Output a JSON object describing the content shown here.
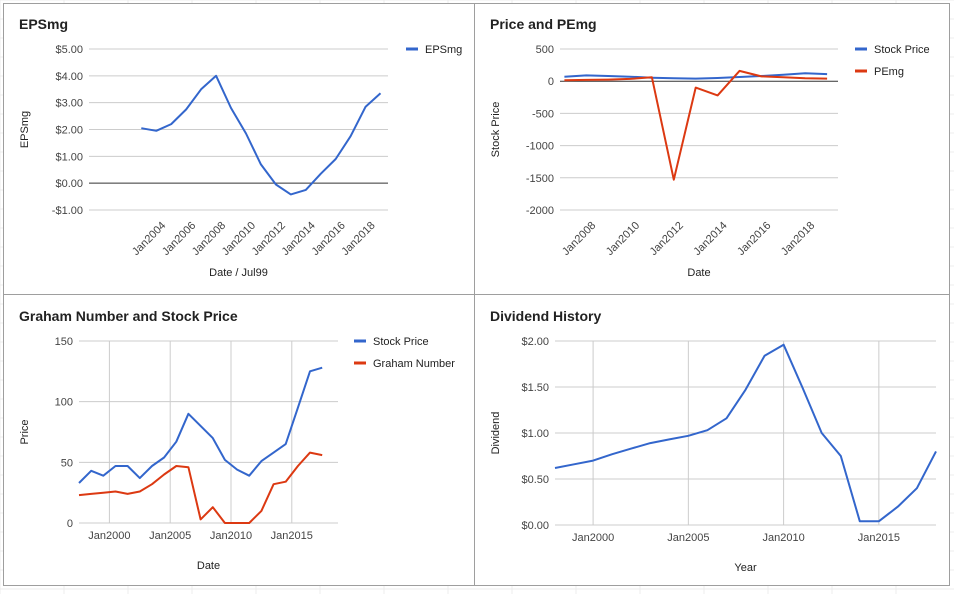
{
  "chart_data": [
    {
      "type": "line",
      "title": "EPSmg",
      "xlabel": "Date / Jul99",
      "ylabel": "EPSmg",
      "xlim": [
        1999.5,
        2019.5
      ],
      "ylim": [
        -1,
        5
      ],
      "yticks": [
        5,
        4,
        3,
        2,
        1,
        0,
        -1
      ],
      "ytick_labels": [
        "$5.00",
        "$4.00",
        "$3.00",
        "$2.00",
        "$1.00",
        "$0.00",
        "-$1.00"
      ],
      "xticks": [
        2004,
        2006,
        2008,
        2010,
        2012,
        2014,
        2016,
        2018
      ],
      "xtick_labels": [
        "Jan2004",
        "Jan2006",
        "Jan2008",
        "Jan2010",
        "Jan2012",
        "Jan2014",
        "Jan2016",
        "Jan2018"
      ],
      "xtick_rotation": -45,
      "zero_line": true,
      "vertical_grid": false,
      "legend_position": "right",
      "series": [
        {
          "name": "EPSmg",
          "color": "#3366cc",
          "x": [
            2003,
            2004,
            2005,
            2006,
            2007,
            2008,
            2009,
            2010,
            2011,
            2012,
            2013,
            2014,
            2015,
            2016,
            2017,
            2018,
            2019
          ],
          "y": [
            2.05,
            1.95,
            2.2,
            2.75,
            3.5,
            4.0,
            2.8,
            1.85,
            0.7,
            -0.05,
            -0.42,
            -0.25,
            0.35,
            0.9,
            1.75,
            2.85,
            3.35
          ]
        }
      ]
    },
    {
      "type": "line",
      "title": "Price and PEmg",
      "xlabel": "Date",
      "ylabel": "Stock Price",
      "xlim": [
        2006.8,
        2019.5
      ],
      "ylim": [
        -2000,
        500
      ],
      "yticks": [
        500,
        0,
        -500,
        -1000,
        -1500,
        -2000
      ],
      "ytick_labels": [
        "500",
        "0",
        "-500",
        "-1000",
        "-1500",
        "-2000"
      ],
      "xticks": [
        2008,
        2010,
        2012,
        2014,
        2016,
        2018
      ],
      "xtick_labels": [
        "Jan2008",
        "Jan2010",
        "Jan2012",
        "Jan2014",
        "Jan2016",
        "Jan2018"
      ],
      "xtick_rotation": -45,
      "zero_line": true,
      "vertical_grid": false,
      "legend_position": "right",
      "series": [
        {
          "name": "Stock Price",
          "color": "#3366cc",
          "x": [
            2007,
            2008,
            2009,
            2010,
            2011,
            2012,
            2013,
            2014,
            2015,
            2016,
            2017,
            2018,
            2019
          ],
          "y": [
            70,
            90,
            80,
            70,
            55,
            45,
            40,
            50,
            65,
            80,
            100,
            125,
            110
          ]
        },
        {
          "name": "PEmg",
          "color": "#dc3912",
          "x": [
            2007,
            2008,
            2009,
            2010,
            2011,
            2012,
            2013,
            2014,
            2015,
            2016,
            2017,
            2018,
            2019
          ],
          "y": [
            15,
            20,
            25,
            35,
            60,
            -1530,
            -100,
            -220,
            160,
            75,
            60,
            45,
            40
          ]
        }
      ]
    },
    {
      "type": "line",
      "title": "Graham Number and Stock Price",
      "xlabel": "Date",
      "ylabel": "Price",
      "xlim": [
        1997.5,
        2018.8
      ],
      "ylim": [
        0,
        150
      ],
      "yticks": [
        150,
        100,
        50,
        0
      ],
      "ytick_labels": [
        "150",
        "100",
        "50",
        "0"
      ],
      "xticks": [
        2000,
        2005,
        2010,
        2015
      ],
      "xtick_labels": [
        "Jan2000",
        "Jan2005",
        "Jan2010",
        "Jan2015"
      ],
      "vertical_grid": true,
      "legend_position": "right",
      "series": [
        {
          "name": "Stock Price",
          "color": "#3366cc",
          "x": [
            1997.5,
            1998.5,
            1999.5,
            2000.5,
            2001.5,
            2002.5,
            2003.5,
            2004.5,
            2005.5,
            2006.5,
            2007.5,
            2008.5,
            2009.5,
            2010.5,
            2011.5,
            2012.5,
            2013.5,
            2014.5,
            2015.5,
            2016.5,
            2017.5
          ],
          "y": [
            33,
            43,
            39,
            47,
            47,
            37,
            47,
            54,
            67,
            90,
            80,
            70,
            52,
            44,
            39,
            51,
            58,
            65,
            95,
            125,
            128
          ]
        },
        {
          "name": "Graham Number",
          "color": "#dc3912",
          "x": [
            1997.5,
            1998.5,
            1999.5,
            2000.5,
            2001.5,
            2002.5,
            2003.5,
            2004.5,
            2005.5,
            2006.5,
            2007.5,
            2008.5,
            2009.5,
            2010.5,
            2011.5,
            2012.5,
            2013.5,
            2014.5,
            2015.5,
            2016.5,
            2017.5
          ],
          "y": [
            23,
            24,
            25,
            26,
            24,
            26,
            32,
            40,
            47,
            46,
            3,
            13,
            0,
            0,
            0,
            10,
            32,
            34,
            47,
            58,
            56
          ]
        }
      ]
    },
    {
      "type": "line",
      "title": "Dividend History",
      "xlabel": "Year",
      "ylabel": "Dividend",
      "xlim": [
        1998,
        2018
      ],
      "ylim": [
        0,
        2
      ],
      "yticks": [
        2,
        1.5,
        1,
        0.5,
        0
      ],
      "ytick_labels": [
        "$2.00",
        "$1.50",
        "$1.00",
        "$0.50",
        "$0.00"
      ],
      "xticks": [
        2000,
        2005,
        2010,
        2015
      ],
      "xtick_labels": [
        "Jan2000",
        "Jan2005",
        "Jan2010",
        "Jan2015"
      ],
      "vertical_grid": true,
      "legend_position": "none",
      "series": [
        {
          "name": "",
          "color": "#3366cc",
          "x": [
            1998,
            1999,
            2000,
            2001,
            2002,
            2003,
            2004,
            2005,
            2006,
            2007,
            2008,
            2009,
            2010,
            2011,
            2012,
            2013,
            2014,
            2015,
            2016,
            2017,
            2018
          ],
          "y": [
            0.62,
            0.66,
            0.7,
            0.77,
            0.83,
            0.89,
            0.93,
            0.97,
            1.03,
            1.16,
            1.47,
            1.84,
            1.96,
            1.49,
            1.0,
            0.75,
            0.04,
            0.04,
            0.2,
            0.4,
            0.8
          ]
        }
      ]
    }
  ]
}
